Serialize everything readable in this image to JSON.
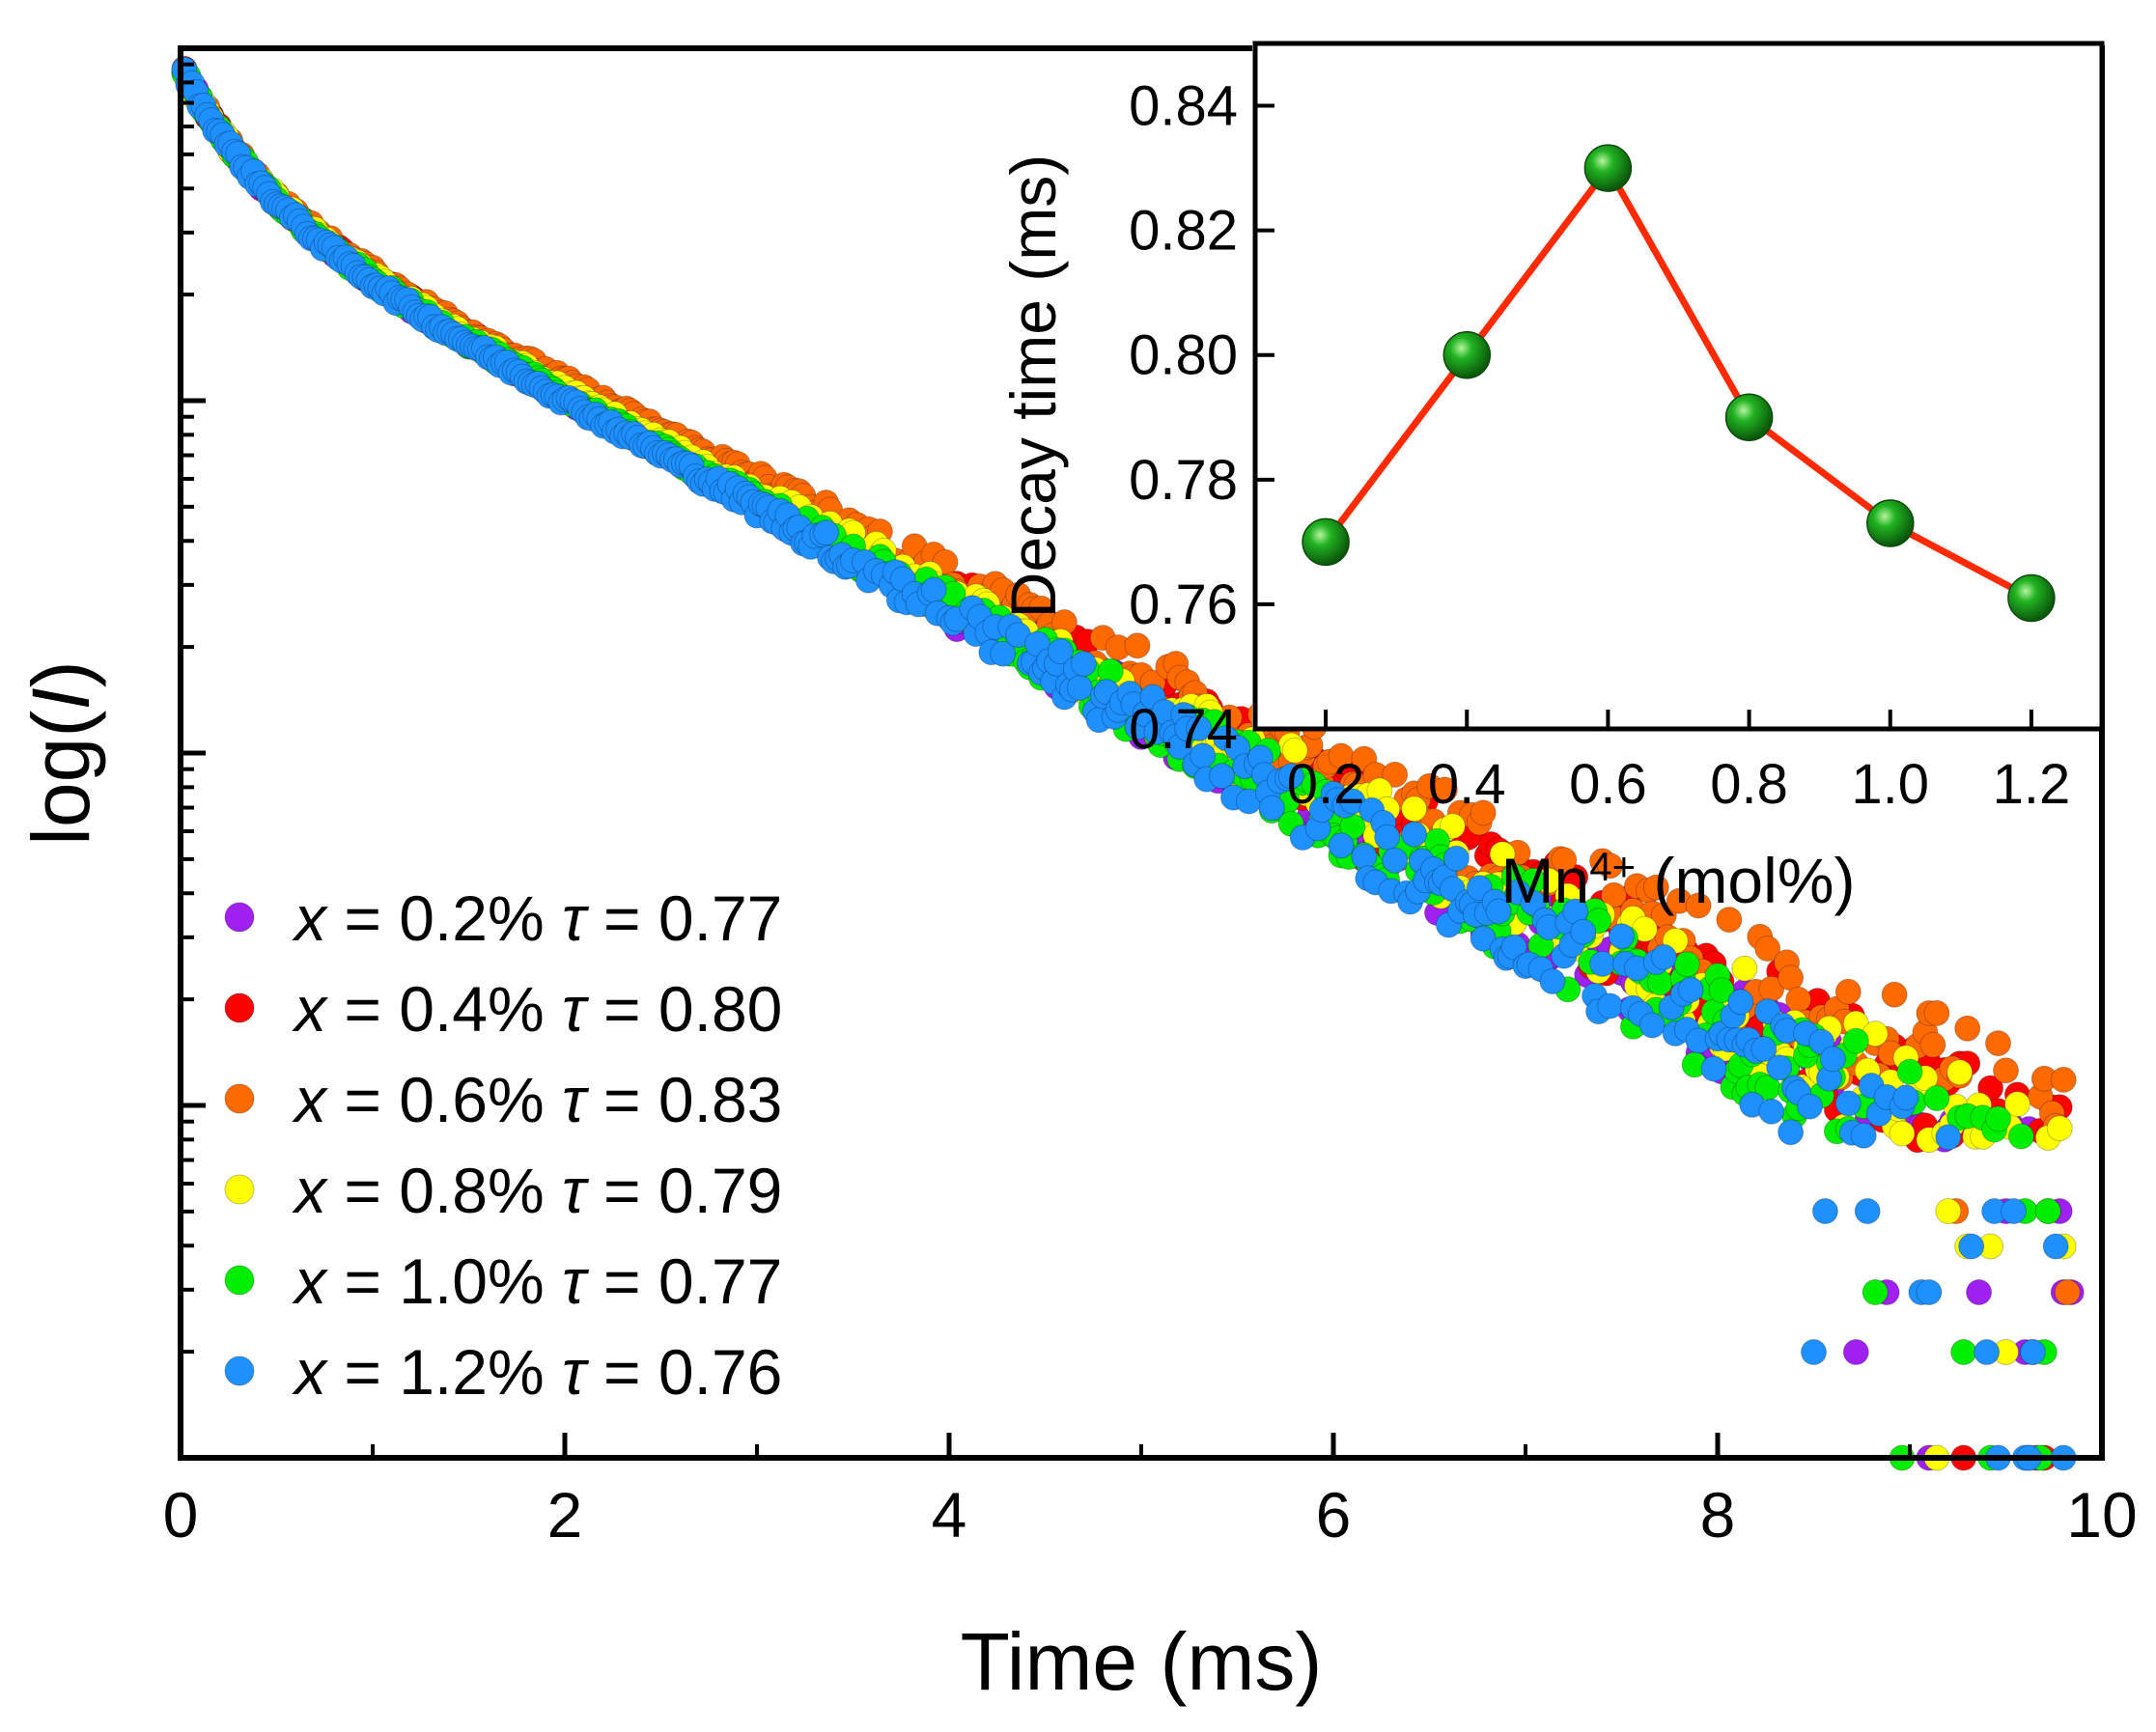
{
  "chart_data": [
    {
      "type": "scatter",
      "title": "",
      "xlabel": "Time (ms)",
      "ylabel_prefix": "log(",
      "ylabel_var": "I",
      "ylabel_suffix": ")",
      "xlim": [
        0,
        10
      ],
      "ylim_decades": [
        0,
        4
      ],
      "x_tick_values": [
        0,
        2,
        4,
        6,
        8,
        10
      ],
      "x_tick_labels": [
        "0",
        "2",
        "4",
        "6",
        "8",
        "10"
      ],
      "y_tick_labels": [],
      "series": [
        {
          "name": "x = 0.2%",
          "x_label": "x",
          "conc": "0.2%",
          "tau_label": "τ",
          "tau": "0.77",
          "tau_value": 0.77,
          "color": "#a020f0"
        },
        {
          "name": "x = 0.4%",
          "x_label": "x",
          "conc": "0.4%",
          "tau_label": "τ",
          "tau": "0.80",
          "tau_value": 0.8,
          "color": "#ff0000"
        },
        {
          "name": "x = 0.6%",
          "x_label": "x",
          "conc": "0.6%",
          "tau_label": "τ",
          "tau": "0.83",
          "tau_value": 0.83,
          "color": "#ff6a00"
        },
        {
          "name": "x = 0.8%",
          "x_label": "x",
          "conc": "0.8%",
          "tau_label": "τ",
          "tau": "0.79",
          "tau_value": 0.79,
          "color": "#ffff00"
        },
        {
          "name": "x = 1.0%",
          "x_label": "x",
          "conc": "1.0%",
          "tau_label": "τ",
          "tau": "0.77",
          "tau_value": 0.77,
          "color": "#00ee00"
        },
        {
          "name": "x = 1.2%",
          "x_label": "x",
          "conc": "1.2%",
          "tau_label": "τ",
          "tau": "0.76",
          "tau_value": 0.76,
          "color": "#1e90ff"
        }
      ],
      "decay_model": {
        "start_decade": 3.95,
        "fast_component_amplitude": 0.35,
        "fast_component_time_ms": 0.45,
        "slope_decades_per_ms": 0.275,
        "noise_floor_decade": 0.9,
        "discrete_levels_decade": [
          0,
          0.3,
          0.47,
          0.6,
          0.7
        ]
      },
      "legend_position": "bottom-left"
    },
    {
      "type": "line",
      "title": "",
      "xlabel_base": "Mn",
      "xlabel_sup": "4+",
      "xlabel_rest": " (mol%)",
      "ylabel": "Decay time (ms)",
      "xlim": [
        0.1,
        1.3
      ],
      "ylim": [
        0.74,
        0.85
      ],
      "x": [
        0.2,
        0.4,
        0.6,
        0.8,
        1.0,
        1.2
      ],
      "y": [
        0.77,
        0.8,
        0.83,
        0.79,
        0.773,
        0.761
      ],
      "x_tick_values": [
        0.2,
        0.4,
        0.6,
        0.8,
        1.0,
        1.2
      ],
      "x_tick_labels": [
        "0.2",
        "0.4",
        "0.6",
        "0.8",
        "1.0",
        "1.2"
      ],
      "y_tick_values": [
        0.74,
        0.76,
        0.78,
        0.8,
        0.82,
        0.84
      ],
      "y_tick_labels": [
        "0.74",
        "0.76",
        "0.78",
        "0.80",
        "0.82",
        "0.84"
      ],
      "line_color": "#ff2a00",
      "marker_color": "#1a9e1a",
      "position": "inset top-right"
    }
  ]
}
